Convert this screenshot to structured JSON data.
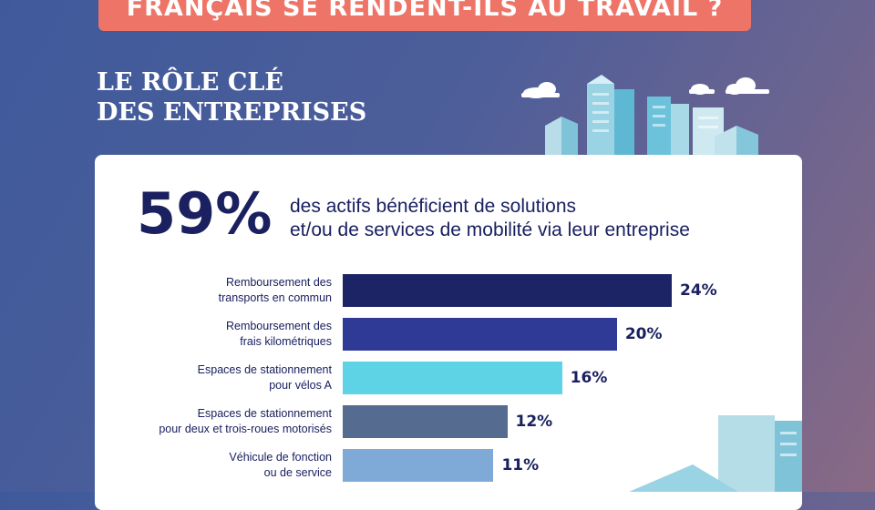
{
  "banner": {
    "title": "FRANÇAIS SE RENDENT-ILS AU TRAVAIL ?"
  },
  "subtitle": {
    "line1": "LE RÔLE CLÉ",
    "line2": "DES ENTREPRISES"
  },
  "headline": {
    "percent": "59%",
    "line1": "des actifs bénéficient de solutions",
    "line2": "et/ou de services de mobilité via leur entreprise"
  },
  "chart_data": {
    "type": "bar",
    "orientation": "horizontal",
    "categories": [
      [
        "Remboursement des",
        "transports en commun"
      ],
      [
        "Remboursement des",
        "frais kilométriques"
      ],
      [
        "Espaces de stationnement",
        "pour vélos A"
      ],
      [
        "Espaces de stationnement",
        "pour deux et trois-roues motorisés"
      ],
      [
        "Véhicule de fonction",
        "ou de service"
      ]
    ],
    "values": [
      24,
      20,
      16,
      12,
      11
    ],
    "value_labels": [
      "24%",
      "20%",
      "16%",
      "12%",
      "11%"
    ],
    "bar_colors": [
      "#1c2466",
      "#2e3a96",
      "#5ed3e6",
      "#556b90",
      "#7fa9d6"
    ],
    "title": "",
    "xlabel": "",
    "ylabel": "",
    "xlim": [
      0,
      24
    ],
    "grid": false
  },
  "colors": {
    "accent": "#ef7468",
    "navy": "#1a2060"
  }
}
